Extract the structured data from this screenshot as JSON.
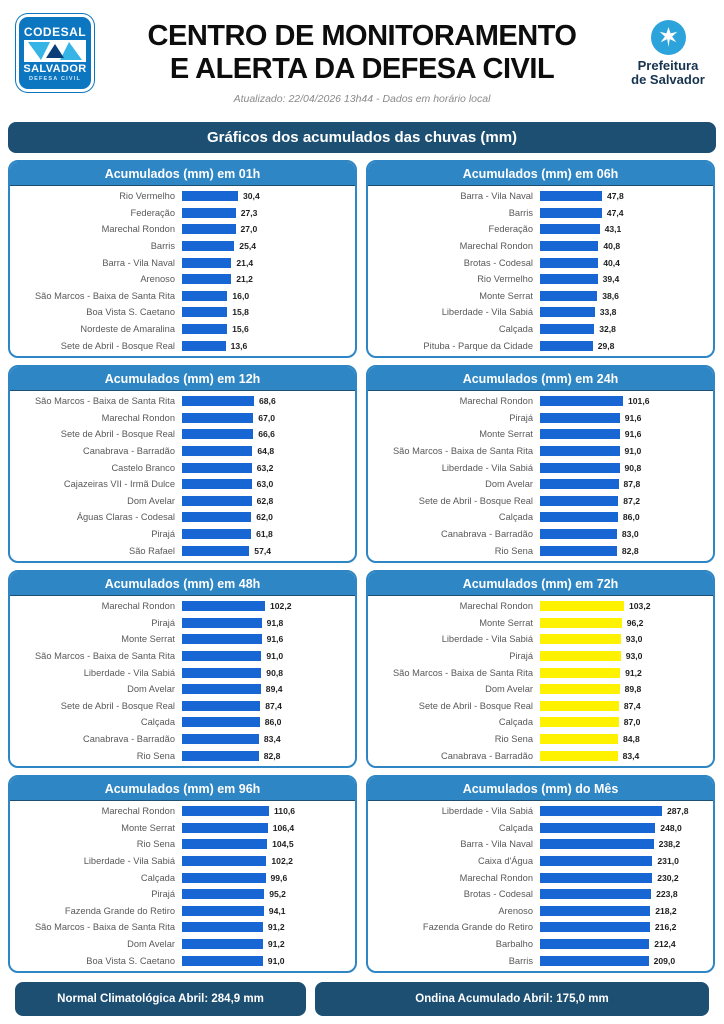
{
  "header": {
    "codesal_logo": {
      "top": "CODESAL",
      "middle": "SALVADOR",
      "bottom": "DEFESA CIVIL"
    },
    "title_line1": "CENTRO DE MONITORAMENTO",
    "title_line2": "E ALERTA DA DEFESA CIVIL",
    "updated": "Atualizado: 22/04/2026 13h44 - Dados em horário local",
    "prefeitura_logo": {
      "line1": "Prefeitura",
      "line2": "de Salvador"
    }
  },
  "banner": {
    "title": "Gráficos dos acumulados das chuvas (mm)"
  },
  "colors": {
    "panel_blue": "#2e86c4",
    "navy": "#1d4f72",
    "bar_blue": "#1766d4",
    "bar_yellow": "#fff200"
  },
  "footer": {
    "left_label": "Normal Climatológica Abril: 284,9 mm",
    "right_label": "Ondina Acumulado Abril: 175,0 mm"
  },
  "chart_data": [
    {
      "type": "bar",
      "orientation": "horizontal",
      "title": "Acumulados (mm) em 01h",
      "bar_color": "#1766d4",
      "categories": [
        "Rio Vermelho",
        "Federação",
        "Marechal Rondon",
        "Barris",
        "Barra - Vila Naval",
        "Arenoso",
        "São Marcos - Baixa de Santa Rita",
        "Boa Vista S. Caetano",
        "Nordeste de Amaralina",
        "Sete de Abril - Bosque Real"
      ],
      "values": [
        30.4,
        27.3,
        27.0,
        25.4,
        21.4,
        21.2,
        16.0,
        15.8,
        15.6,
        13.6
      ],
      "value_labels": [
        "30,4",
        "27,3",
        "27,0",
        "25,4",
        "21,4",
        "21,2",
        "16,0",
        "15,8",
        "15,6",
        "13,6"
      ]
    },
    {
      "type": "bar",
      "orientation": "horizontal",
      "title": "Acumulados (mm) em 06h",
      "bar_color": "#1766d4",
      "categories": [
        "Barra - Vila Naval",
        "Barris",
        "Federação",
        "Marechal Rondon",
        "Brotas - Codesal",
        "Rio Vermelho",
        "Monte Serrat",
        "Liberdade - Vila Sabiá",
        "Calçada",
        "Pituba - Parque da Cidade"
      ],
      "values": [
        47.8,
        47.4,
        43.1,
        40.8,
        40.4,
        39.4,
        38.6,
        33.8,
        32.8,
        29.8
      ],
      "value_labels": [
        "47,8",
        "47,4",
        "43,1",
        "40,8",
        "40,4",
        "39,4",
        "38,6",
        "33,8",
        "32,8",
        "29,8"
      ]
    },
    {
      "type": "bar",
      "orientation": "horizontal",
      "title": "Acumulados (mm) em 12h",
      "bar_color": "#1766d4",
      "categories": [
        "São Marcos - Baixa de Santa Rita",
        "Marechal Rondon",
        "Sete de Abril - Bosque Real",
        "Canabrava - Barradão",
        "Castelo Branco",
        "Cajazeiras VII - Irmã Dulce",
        "Dom Avelar",
        "Águas Claras - Codesal",
        "Pirajá",
        "São Rafael"
      ],
      "values": [
        68.6,
        67.0,
        66.6,
        64.8,
        63.2,
        63.0,
        62.8,
        62.0,
        61.8,
        57.4
      ],
      "value_labels": [
        "68,6",
        "67,0",
        "66,6",
        "64,8",
        "63,2",
        "63,0",
        "62,8",
        "62,0",
        "61,8",
        "57,4"
      ]
    },
    {
      "type": "bar",
      "orientation": "horizontal",
      "title": "Acumulados (mm) em 24h",
      "bar_color": "#1766d4",
      "categories": [
        "Marechal Rondon",
        "Pirajá",
        "Monte Serrat",
        "São Marcos - Baixa de Santa Rita",
        "Liberdade - Vila Sabiá",
        "Dom Avelar",
        "Sete de Abril - Bosque Real",
        "Calçada",
        "Canabrava - Barradão",
        "Rio Sena"
      ],
      "values": [
        101.6,
        91.6,
        91.6,
        91.0,
        90.8,
        87.8,
        87.2,
        86.0,
        83.0,
        82.8
      ],
      "value_labels": [
        "101,6",
        "91,6",
        "91,6",
        "91,0",
        "90,8",
        "87,8",
        "87,2",
        "86,0",
        "83,0",
        "82,8"
      ]
    },
    {
      "type": "bar",
      "orientation": "horizontal",
      "title": "Acumulados (mm) em 48h",
      "bar_color": "#1766d4",
      "categories": [
        "Marechal Rondon",
        "Pirajá",
        "Monte Serrat",
        "São Marcos - Baixa de Santa Rita",
        "Liberdade - Vila Sabiá",
        "Dom Avelar",
        "Sete de Abril - Bosque Real",
        "Calçada",
        "Canabrava - Barradão",
        "Rio Sena"
      ],
      "values": [
        102.2,
        91.8,
        91.6,
        91.0,
        90.8,
        89.4,
        87.4,
        86.0,
        83.4,
        82.8
      ],
      "value_labels": [
        "102,2",
        "91,8",
        "91,6",
        "91,0",
        "90,8",
        "89,4",
        "87,4",
        "86,0",
        "83,4",
        "82,8"
      ]
    },
    {
      "type": "bar",
      "orientation": "horizontal",
      "title": "Acumulados (mm) em 72h",
      "bar_color": "#fff200",
      "categories": [
        "Marechal Rondon",
        "Monte Serrat",
        "Liberdade - Vila Sabiá",
        "Pirajá",
        "São Marcos - Baixa de Santa Rita",
        "Dom Avelar",
        "Sete de Abril - Bosque Real",
        "Calçada",
        "Rio Sena",
        "Canabrava - Barradão"
      ],
      "values": [
        103.2,
        96.2,
        93.0,
        93.0,
        91.2,
        89.8,
        87.4,
        87.0,
        84.8,
        83.4
      ],
      "value_labels": [
        "103,2",
        "96,2",
        "93,0",
        "93,0",
        "91,2",
        "89,8",
        "87,4",
        "87,0",
        "84,8",
        "83,4"
      ]
    },
    {
      "type": "bar",
      "orientation": "horizontal",
      "title": "Acumulados (mm) em 96h",
      "bar_color": "#1766d4",
      "categories": [
        "Marechal Rondon",
        "Monte Serrat",
        "Rio Sena",
        "Liberdade - Vila Sabiá",
        "Calçada",
        "Pirajá",
        "Fazenda Grande do Retiro",
        "São Marcos - Baixa de Santa Rita",
        "Dom Avelar",
        "Boa Vista S. Caetano"
      ],
      "values": [
        110.6,
        106.4,
        104.5,
        102.2,
        99.6,
        95.2,
        94.1,
        91.2,
        91.2,
        91.0
      ],
      "value_labels": [
        "110,6",
        "106,4",
        "104,5",
        "102,2",
        "99,6",
        "95,2",
        "94,1",
        "91,2",
        "91,2",
        "91,0"
      ]
    },
    {
      "type": "bar",
      "orientation": "horizontal",
      "title": "Acumulados (mm) do Mês",
      "bar_color": "#1766d4",
      "categories": [
        "Liberdade - Vila Sabiá",
        "Calçada",
        "Barra - Vila Naval",
        "Caixa d'Água",
        "Marechal Rondon",
        "Brotas - Codesal",
        "Arenoso",
        "Fazenda Grande do Retiro",
        "Barbalho",
        "Barris"
      ],
      "values": [
        287.8,
        248.0,
        238.2,
        231.0,
        230.2,
        223.8,
        218.2,
        216.2,
        212.4,
        209.0
      ],
      "value_labels": [
        "287,8",
        "248,0",
        "238,2",
        "231,0",
        "230,2",
        "223,8",
        "218,2",
        "216,2",
        "212,4",
        "209,0"
      ]
    }
  ]
}
